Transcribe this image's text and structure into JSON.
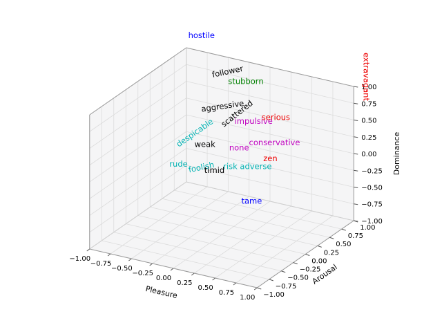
{
  "figure": {
    "background": "#ffffff"
  },
  "chart_data": {
    "type": "scatter",
    "projection": "3d",
    "title": "",
    "axes": {
      "x": {
        "label": "Pleasure",
        "range": [
          -1,
          1
        ],
        "tick_values": [
          -1,
          -0.75,
          -0.5,
          -0.25,
          0,
          0.25,
          0.5,
          0.75,
          1
        ],
        "tick_labels": [
          "−1.00",
          "−0.75",
          "−0.50",
          "−0.25",
          "0.00",
          "0.25",
          "0.50",
          "0.75",
          "1.00"
        ]
      },
      "y": {
        "label": "Arousal",
        "range": [
          -1,
          1
        ],
        "tick_values": [
          -1,
          -0.75,
          -0.5,
          -0.25,
          0,
          0.25,
          0.5,
          0.75,
          1
        ],
        "tick_labels": [
          "−1.00",
          "−0.75",
          "−0.50",
          "−0.25",
          "0.00",
          "0.25",
          "0.50",
          "0.75",
          "1.00"
        ]
      },
      "z": {
        "label": "Dominance",
        "range": [
          -1,
          1
        ],
        "tick_values": [
          -1,
          -0.75,
          -0.5,
          -0.25,
          0,
          0.25,
          0.5,
          0.75,
          1
        ],
        "tick_labels": [
          "−1.00",
          "−0.75",
          "−0.50",
          "−0.25",
          "0.00",
          "0.25",
          "0.50",
          "0.75",
          "1.00"
        ]
      }
    },
    "points": [
      {
        "label": "hostile",
        "pleasure": -1.0,
        "arousal": 1.0,
        "dominance": 1.0,
        "color": "#0000ff",
        "rotation": 0
      },
      {
        "label": "extravagant",
        "pleasure": 1.0,
        "arousal": 1.0,
        "dominance": 1.0,
        "color": "#ee0000",
        "rotation": 90
      },
      {
        "label": "follower",
        "pleasure": -0.5,
        "arousal": 1.0,
        "dominance": 0.75,
        "color": "#000000",
        "rotation": -12
      },
      {
        "label": "stubborn",
        "pleasure": 0.0,
        "arousal": 0.5,
        "dominance": 1.0,
        "color": "#008000",
        "rotation": 0
      },
      {
        "label": "aggressive",
        "pleasure": -0.1,
        "arousal": 0.2,
        "dominance": 0.75,
        "color": "#000000",
        "rotation": -8
      },
      {
        "label": "scattered",
        "pleasure": 0.0,
        "arousal": 0.35,
        "dominance": 0.6,
        "color": "#000000",
        "rotation": -38
      },
      {
        "label": "despicable",
        "pleasure": -0.65,
        "arousal": 0.6,
        "dominance": 0.0,
        "color": "#00b2b2",
        "rotation": -35
      },
      {
        "label": "impulsive",
        "pleasure": 0.15,
        "arousal": 0.4,
        "dominance": 0.5,
        "color": "#c000c0",
        "rotation": 0
      },
      {
        "label": "serious",
        "pleasure": 0.3,
        "arousal": 0.6,
        "dominance": 0.5,
        "color": "#ee0000",
        "rotation": 0
      },
      {
        "label": "weak",
        "pleasure": -0.2,
        "arousal": 0.0,
        "dominance": 0.25,
        "color": "#000000",
        "rotation": 0
      },
      {
        "label": "none",
        "pleasure": 0.15,
        "arousal": 0.1,
        "dominance": 0.25,
        "color": "#c000c0",
        "rotation": 0
      },
      {
        "label": "conservative",
        "pleasure": 0.4,
        "arousal": 0.4,
        "dominance": 0.25,
        "color": "#c000c0",
        "rotation": 0
      },
      {
        "label": "rude",
        "pleasure": -0.4,
        "arousal": -0.2,
        "dominance": 0.0,
        "color": "#00b2b2",
        "rotation": 0
      },
      {
        "label": "foolish",
        "pleasure": -0.15,
        "arousal": -0.15,
        "dominance": 0.0,
        "color": "#00b2b2",
        "rotation": -12
      },
      {
        "label": "timid",
        "pleasure": 0.0,
        "arousal": -0.15,
        "dominance": 0.0,
        "color": "#000000",
        "rotation": 0
      },
      {
        "label": "risk adverse",
        "pleasure": 0.25,
        "arousal": 0.1,
        "dominance": 0.0,
        "color": "#00b2b2",
        "rotation": 0
      },
      {
        "label": "zen",
        "pleasure": 0.35,
        "arousal": 0.4,
        "dominance": 0.0,
        "color": "#ee0000",
        "rotation": 0
      },
      {
        "label": "tame",
        "pleasure": 0.3,
        "arousal": 0.1,
        "dominance": -0.5,
        "color": "#0000ff",
        "rotation": 0
      }
    ],
    "layout": {
      "grid": true,
      "legend": false,
      "pane_color": "#f5f5f6",
      "grid_color": "#dcdcdc",
      "spine_color": "#999999",
      "inner_edge_color": "#cfcfcf",
      "label_pixel_offsets": {
        "hostile": [
          22,
          -14
        ],
        "extravagant": [
          14,
          -14
        ]
      }
    }
  }
}
